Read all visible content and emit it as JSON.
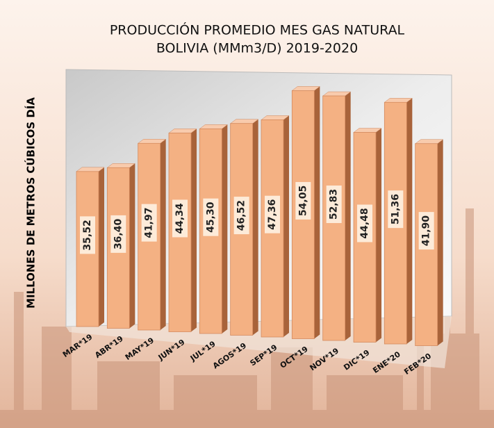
{
  "chart_data": {
    "type": "bar3d",
    "title": "PRODUCCIÓN PROMEDIO MES GAS NATURAL",
    "subtitle": "BOLIVIA (MMm3/D) 2019-2020",
    "y_label": "MILLONES DE METROS CÚBICOS DÍA",
    "categories": [
      "MAR*19",
      "ABR*19",
      "MAY*19",
      "JUN*19",
      "JUL*19",
      "AGOS*19",
      "SEP*19",
      "OCT*19",
      "NOV*19",
      "DIC*19",
      "ENE*20",
      "FEB*20"
    ],
    "values": [
      35.52,
      36.4,
      41.97,
      44.34,
      45.3,
      46.52,
      47.36,
      54.05,
      52.83,
      44.48,
      51.36,
      41.9
    ],
    "value_labels": [
      "35,52",
      "36,40",
      "41,97",
      "44,34",
      "45,30",
      "46,52",
      "47,36",
      "54,05",
      "52,83",
      "44,48",
      "51,36",
      "41,90"
    ],
    "color": "#F4B183",
    "ylim": [
      0,
      60
    ]
  }
}
